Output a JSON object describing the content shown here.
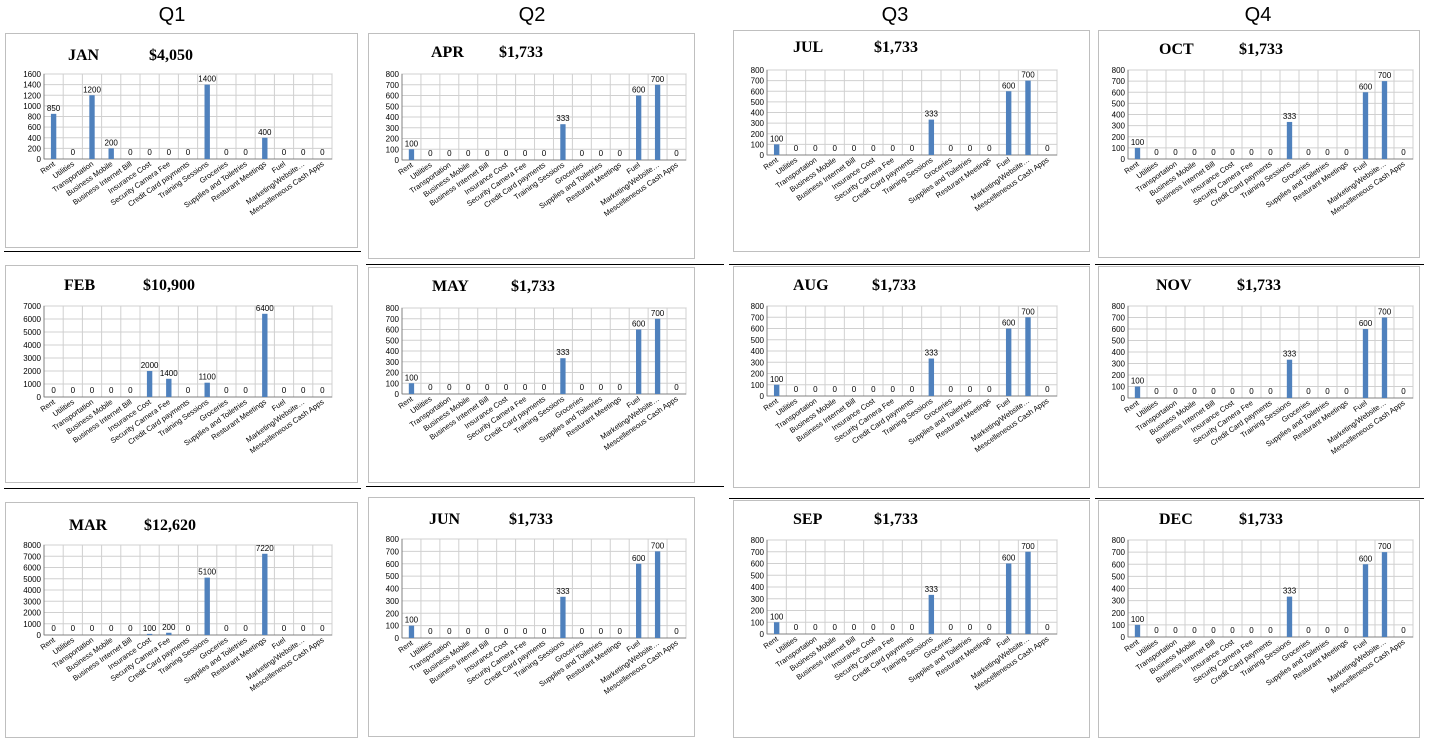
{
  "quarters": [
    {
      "label": "Q1"
    },
    {
      "label": "Q2"
    },
    {
      "label": "Q3"
    },
    {
      "label": "Q4"
    }
  ],
  "colors": {
    "bar": "#4f81bd",
    "grid": "#d0d0d0",
    "plot_background": "#ffffff"
  },
  "chart_data": [
    {
      "type": "bar",
      "month": "JAN",
      "total": "$4,050",
      "categories": [
        "Rent",
        "Utilities",
        "Transportation",
        "Business Mobile",
        "Business Internet Bill",
        "Insurance Cost",
        "Security Camera Fee",
        "Credit Card payments",
        "Training Sessions",
        "Groceries",
        "Supplies and Toiletries",
        "Resturant Meetings",
        "Fuel",
        "Marketing/Website…",
        "Mescelleneous Cash Apps"
      ],
      "values": [
        850,
        0,
        1200,
        200,
        0,
        0,
        0,
        0,
        1400,
        0,
        0,
        400,
        0,
        0,
        0
      ],
      "ylim": [
        0,
        1600
      ],
      "yticks": [
        0,
        200,
        400,
        600,
        800,
        1000,
        1200,
        1400,
        1600
      ],
      "grid": true
    },
    {
      "type": "bar",
      "month": "FEB",
      "total": "$10,900",
      "categories": [
        "Rent",
        "Utilities",
        "Transportation",
        "Business Mobile",
        "Business Internet Bill",
        "Insurance Cost",
        "Security Camera Fee",
        "Credit Card payments",
        "Training Sessions",
        "Groceries",
        "Supplies and Toiletries",
        "Resturant Meetings",
        "Fuel",
        "Marketing/Website…",
        "Mescelleneous Cash Apps"
      ],
      "values": [
        0,
        0,
        0,
        0,
        0,
        2000,
        1400,
        0,
        1100,
        0,
        0,
        6400,
        0,
        0,
        0
      ],
      "ylim": [
        0,
        7000
      ],
      "yticks": [
        0,
        1000,
        2000,
        3000,
        4000,
        5000,
        6000,
        7000
      ],
      "grid": true
    },
    {
      "type": "bar",
      "month": "MAR",
      "total": "$12,620",
      "categories": [
        "Rent",
        "Utilities",
        "Transportation",
        "Business Mobile",
        "Business Internet Bill",
        "Insurance Cost",
        "Security Camera Fee",
        "Credit Card payments",
        "Training Sessions",
        "Groceries",
        "Supplies and Toiletries",
        "Resturant Meetings",
        "Fuel",
        "Marketing/Website…",
        "Mescelleneous Cash Apps"
      ],
      "values": [
        0,
        0,
        0,
        0,
        0,
        100,
        200,
        0,
        5100,
        0,
        0,
        7220,
        0,
        0,
        0
      ],
      "ylim": [
        0,
        8000
      ],
      "yticks": [
        0,
        1000,
        2000,
        3000,
        4000,
        5000,
        6000,
        7000,
        8000
      ],
      "grid": true
    },
    {
      "type": "bar",
      "month": "APR",
      "total": "$1,733",
      "categories": [
        "Rent",
        "Utilities",
        "Transportation",
        "Business Mobile",
        "Business Internet Bill",
        "Insurance Cost",
        "Security Camera Fee",
        "Credit Card payments",
        "Training Sessions",
        "Groceries",
        "Supplies and Toiletries",
        "Resturant Meetings",
        "Fuel",
        "Marketing/Website…",
        "Mescelleneous Cash Apps"
      ],
      "values": [
        100,
        0,
        0,
        0,
        0,
        0,
        0,
        0,
        333,
        0,
        0,
        0,
        600,
        700,
        0
      ],
      "ylim": [
        0,
        800
      ],
      "yticks": [
        0,
        100,
        200,
        300,
        400,
        500,
        600,
        700,
        800
      ],
      "grid": true
    },
    {
      "type": "bar",
      "month": "MAY",
      "total": "$1,733",
      "categories": [
        "Rent",
        "Utilities",
        "Transportation",
        "Business Mobile",
        "Business Internet Bill",
        "Insurance Cost",
        "Security Camera Fee",
        "Credit Card payments",
        "Training Sessions",
        "Groceries",
        "Supplies and Toiletries",
        "Resturant Meetings",
        "Fuel",
        "Marketing/Website…",
        "Mescelleneous Cash Apps"
      ],
      "values": [
        100,
        0,
        0,
        0,
        0,
        0,
        0,
        0,
        333,
        0,
        0,
        0,
        600,
        700,
        0
      ],
      "ylim": [
        0,
        800
      ],
      "yticks": [
        0,
        100,
        200,
        300,
        400,
        500,
        600,
        700,
        800
      ],
      "grid": true
    },
    {
      "type": "bar",
      "month": "JUN",
      "total": "$1,733",
      "categories": [
        "Rent",
        "Utilities",
        "Transportation",
        "Business Mobile",
        "Business Internet Bill",
        "Insurance Cost",
        "Security Camera Fee",
        "Credit Card payments",
        "Training Sessions",
        "Groceries",
        "Supplies and Toiletries",
        "Resturant Meetings",
        "Fuel",
        "Marketing/Website…",
        "Mescelleneous Cash Apps"
      ],
      "values": [
        100,
        0,
        0,
        0,
        0,
        0,
        0,
        0,
        333,
        0,
        0,
        0,
        600,
        700,
        0
      ],
      "ylim": [
        0,
        800
      ],
      "yticks": [
        0,
        100,
        200,
        300,
        400,
        500,
        600,
        700,
        800
      ],
      "grid": true
    },
    {
      "type": "bar",
      "month": "JUL",
      "total": "$1,733",
      "categories": [
        "Rent",
        "Utilities",
        "Transportation",
        "Business Mobile",
        "Business Internet Bill",
        "Insurance Cost",
        "Security Camera Fee",
        "Credit Card payments",
        "Training Sessions",
        "Groceries",
        "Supplies and Toiletries",
        "Resturant Meetings",
        "Fuel",
        "Marketing/Website…",
        "Mescelleneous Cash Apps"
      ],
      "values": [
        100,
        0,
        0,
        0,
        0,
        0,
        0,
        0,
        333,
        0,
        0,
        0,
        600,
        700,
        0
      ],
      "ylim": [
        0,
        800
      ],
      "yticks": [
        0,
        100,
        200,
        300,
        400,
        500,
        600,
        700,
        800
      ],
      "grid": true
    },
    {
      "type": "bar",
      "month": "AUG",
      "total": "$1,733",
      "categories": [
        "Rent",
        "Utilities",
        "Transportation",
        "Business Mobile",
        "Business Internet Bill",
        "Insurance Cost",
        "Security Camera Fee",
        "Credit Card payments",
        "Training Sessions",
        "Groceries",
        "Supplies and Toiletries",
        "Resturant Meetings",
        "Fuel",
        "Marketing/Website…",
        "Mescelleneous Cash Apps"
      ],
      "values": [
        100,
        0,
        0,
        0,
        0,
        0,
        0,
        0,
        333,
        0,
        0,
        0,
        600,
        700,
        0
      ],
      "ylim": [
        0,
        800
      ],
      "yticks": [
        0,
        100,
        200,
        300,
        400,
        500,
        600,
        700,
        800
      ],
      "grid": true
    },
    {
      "type": "bar",
      "month": "SEP",
      "total": "$1,733",
      "categories": [
        "Rent",
        "Utilities",
        "Transportation",
        "Business Mobile",
        "Business Internet Bill",
        "Insurance Cost",
        "Security Camera Fee",
        "Credit Card payments",
        "Training Sessions",
        "Groceries",
        "Supplies and Toiletries",
        "Resturant Meetings",
        "Fuel",
        "Marketing/Website…",
        "Mescelleneous Cash Apps"
      ],
      "values": [
        100,
        0,
        0,
        0,
        0,
        0,
        0,
        0,
        333,
        0,
        0,
        0,
        600,
        700,
        0
      ],
      "ylim": [
        0,
        800
      ],
      "yticks": [
        0,
        100,
        200,
        300,
        400,
        500,
        600,
        700,
        800
      ],
      "grid": true
    },
    {
      "type": "bar",
      "month": "OCT",
      "total": "$1,733",
      "categories": [
        "Rent",
        "Utilities",
        "Transportation",
        "Business Mobile",
        "Business Internet Bill",
        "Insurance Cost",
        "Security Camera Fee",
        "Credit Card payments",
        "Training Sessions",
        "Groceries",
        "Supplies and Toiletries",
        "Resturant Meetings",
        "Fuel",
        "Marketing/Website…",
        "Mescelleneous Cash Apps"
      ],
      "values": [
        100,
        0,
        0,
        0,
        0,
        0,
        0,
        0,
        333,
        0,
        0,
        0,
        600,
        700,
        0
      ],
      "ylim": [
        0,
        800
      ],
      "yticks": [
        0,
        100,
        200,
        300,
        400,
        500,
        600,
        700,
        800
      ],
      "grid": true
    },
    {
      "type": "bar",
      "month": "NOV",
      "total": "$1,733",
      "categories": [
        "Rent",
        "Utilities",
        "Transportation",
        "Business Mobile",
        "Business Internet Bill",
        "Insurance Cost",
        "Security Camera Fee",
        "Credit Card payments",
        "Training Sessions",
        "Groceries",
        "Supplies and Toiletries",
        "Resturant Meetings",
        "Fuel",
        "Marketing/Website…",
        "Mescelleneous Cash Apps"
      ],
      "values": [
        100,
        0,
        0,
        0,
        0,
        0,
        0,
        0,
        333,
        0,
        0,
        0,
        600,
        700,
        0
      ],
      "ylim": [
        0,
        800
      ],
      "yticks": [
        0,
        100,
        200,
        300,
        400,
        500,
        600,
        700,
        800
      ],
      "grid": true
    },
    {
      "type": "bar",
      "month": "DEC",
      "total": "$1,733",
      "categories": [
        "Rent",
        "Utilities",
        "Transportation",
        "Business Mobile",
        "Business Internet Bill",
        "Insurance Cost",
        "Security Camera Fee",
        "Credit Card payments",
        "Training Sessions",
        "Groceries",
        "Supplies and Toiletries",
        "Resturant Meetings",
        "Fuel",
        "Marketing/Website…",
        "Mescelleneous Cash Apps"
      ],
      "values": [
        100,
        0,
        0,
        0,
        0,
        0,
        0,
        0,
        333,
        0,
        0,
        0,
        600,
        700,
        0
      ],
      "ylim": [
        0,
        800
      ],
      "yticks": [
        0,
        100,
        200,
        300,
        400,
        500,
        600,
        700,
        800
      ],
      "grid": true
    }
  ]
}
